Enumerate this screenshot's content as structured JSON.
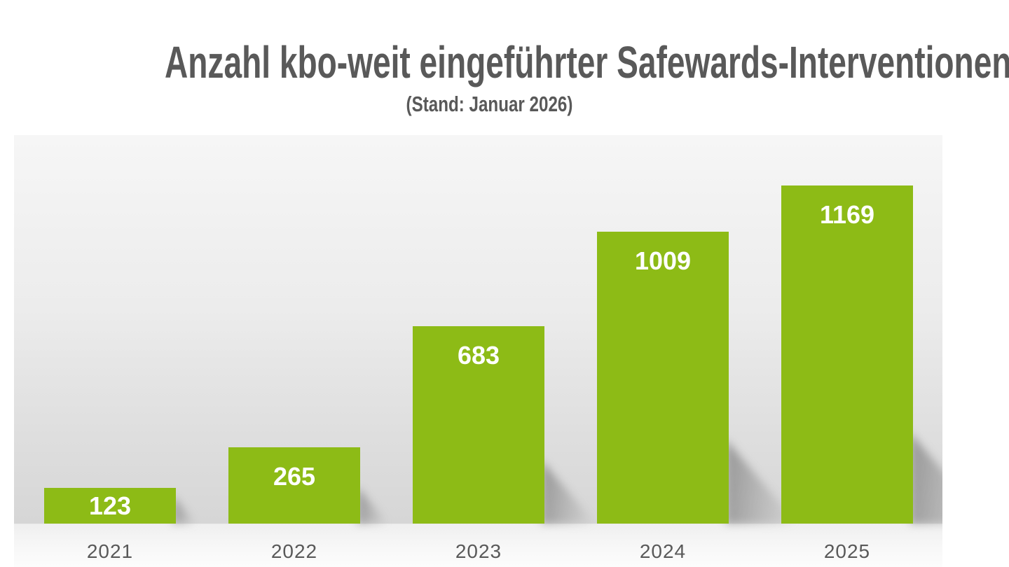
{
  "header": {
    "title": "Anzahl kbo-weit eingeführter Safewards-Interventionen",
    "subtitle": "(Stand: Januar 2026)"
  },
  "colors": {
    "bar_green": "#8DBB16",
    "text_gray": "#595959",
    "value_label_white": "#FFFFFF",
    "wall_top": "#F6F6F6",
    "wall_bottom": "#D6D6D6",
    "floor": "#FAFAFA"
  },
  "chart_data": {
    "type": "bar",
    "title": "Anzahl kbo-weit eingeführter Safewards-Interventionen",
    "subtitle": "(Stand: Januar 2026)",
    "categories": [
      "2021",
      "2022",
      "2023",
      "2024",
      "2025"
    ],
    "values": [
      123,
      265,
      683,
      1009,
      1169
    ],
    "series": [
      {
        "name": "Safewards-Interventionen",
        "values": [
          123,
          265,
          683,
          1009,
          1169
        ]
      }
    ],
    "xlabel": "",
    "ylabel": "",
    "grid": false,
    "legend": false,
    "y_axis_visible": false,
    "x_axis_visible": true,
    "data_label_position": "inside-end",
    "bar_color": "#8DBB16",
    "data_label_color": "#FFFFFF"
  }
}
